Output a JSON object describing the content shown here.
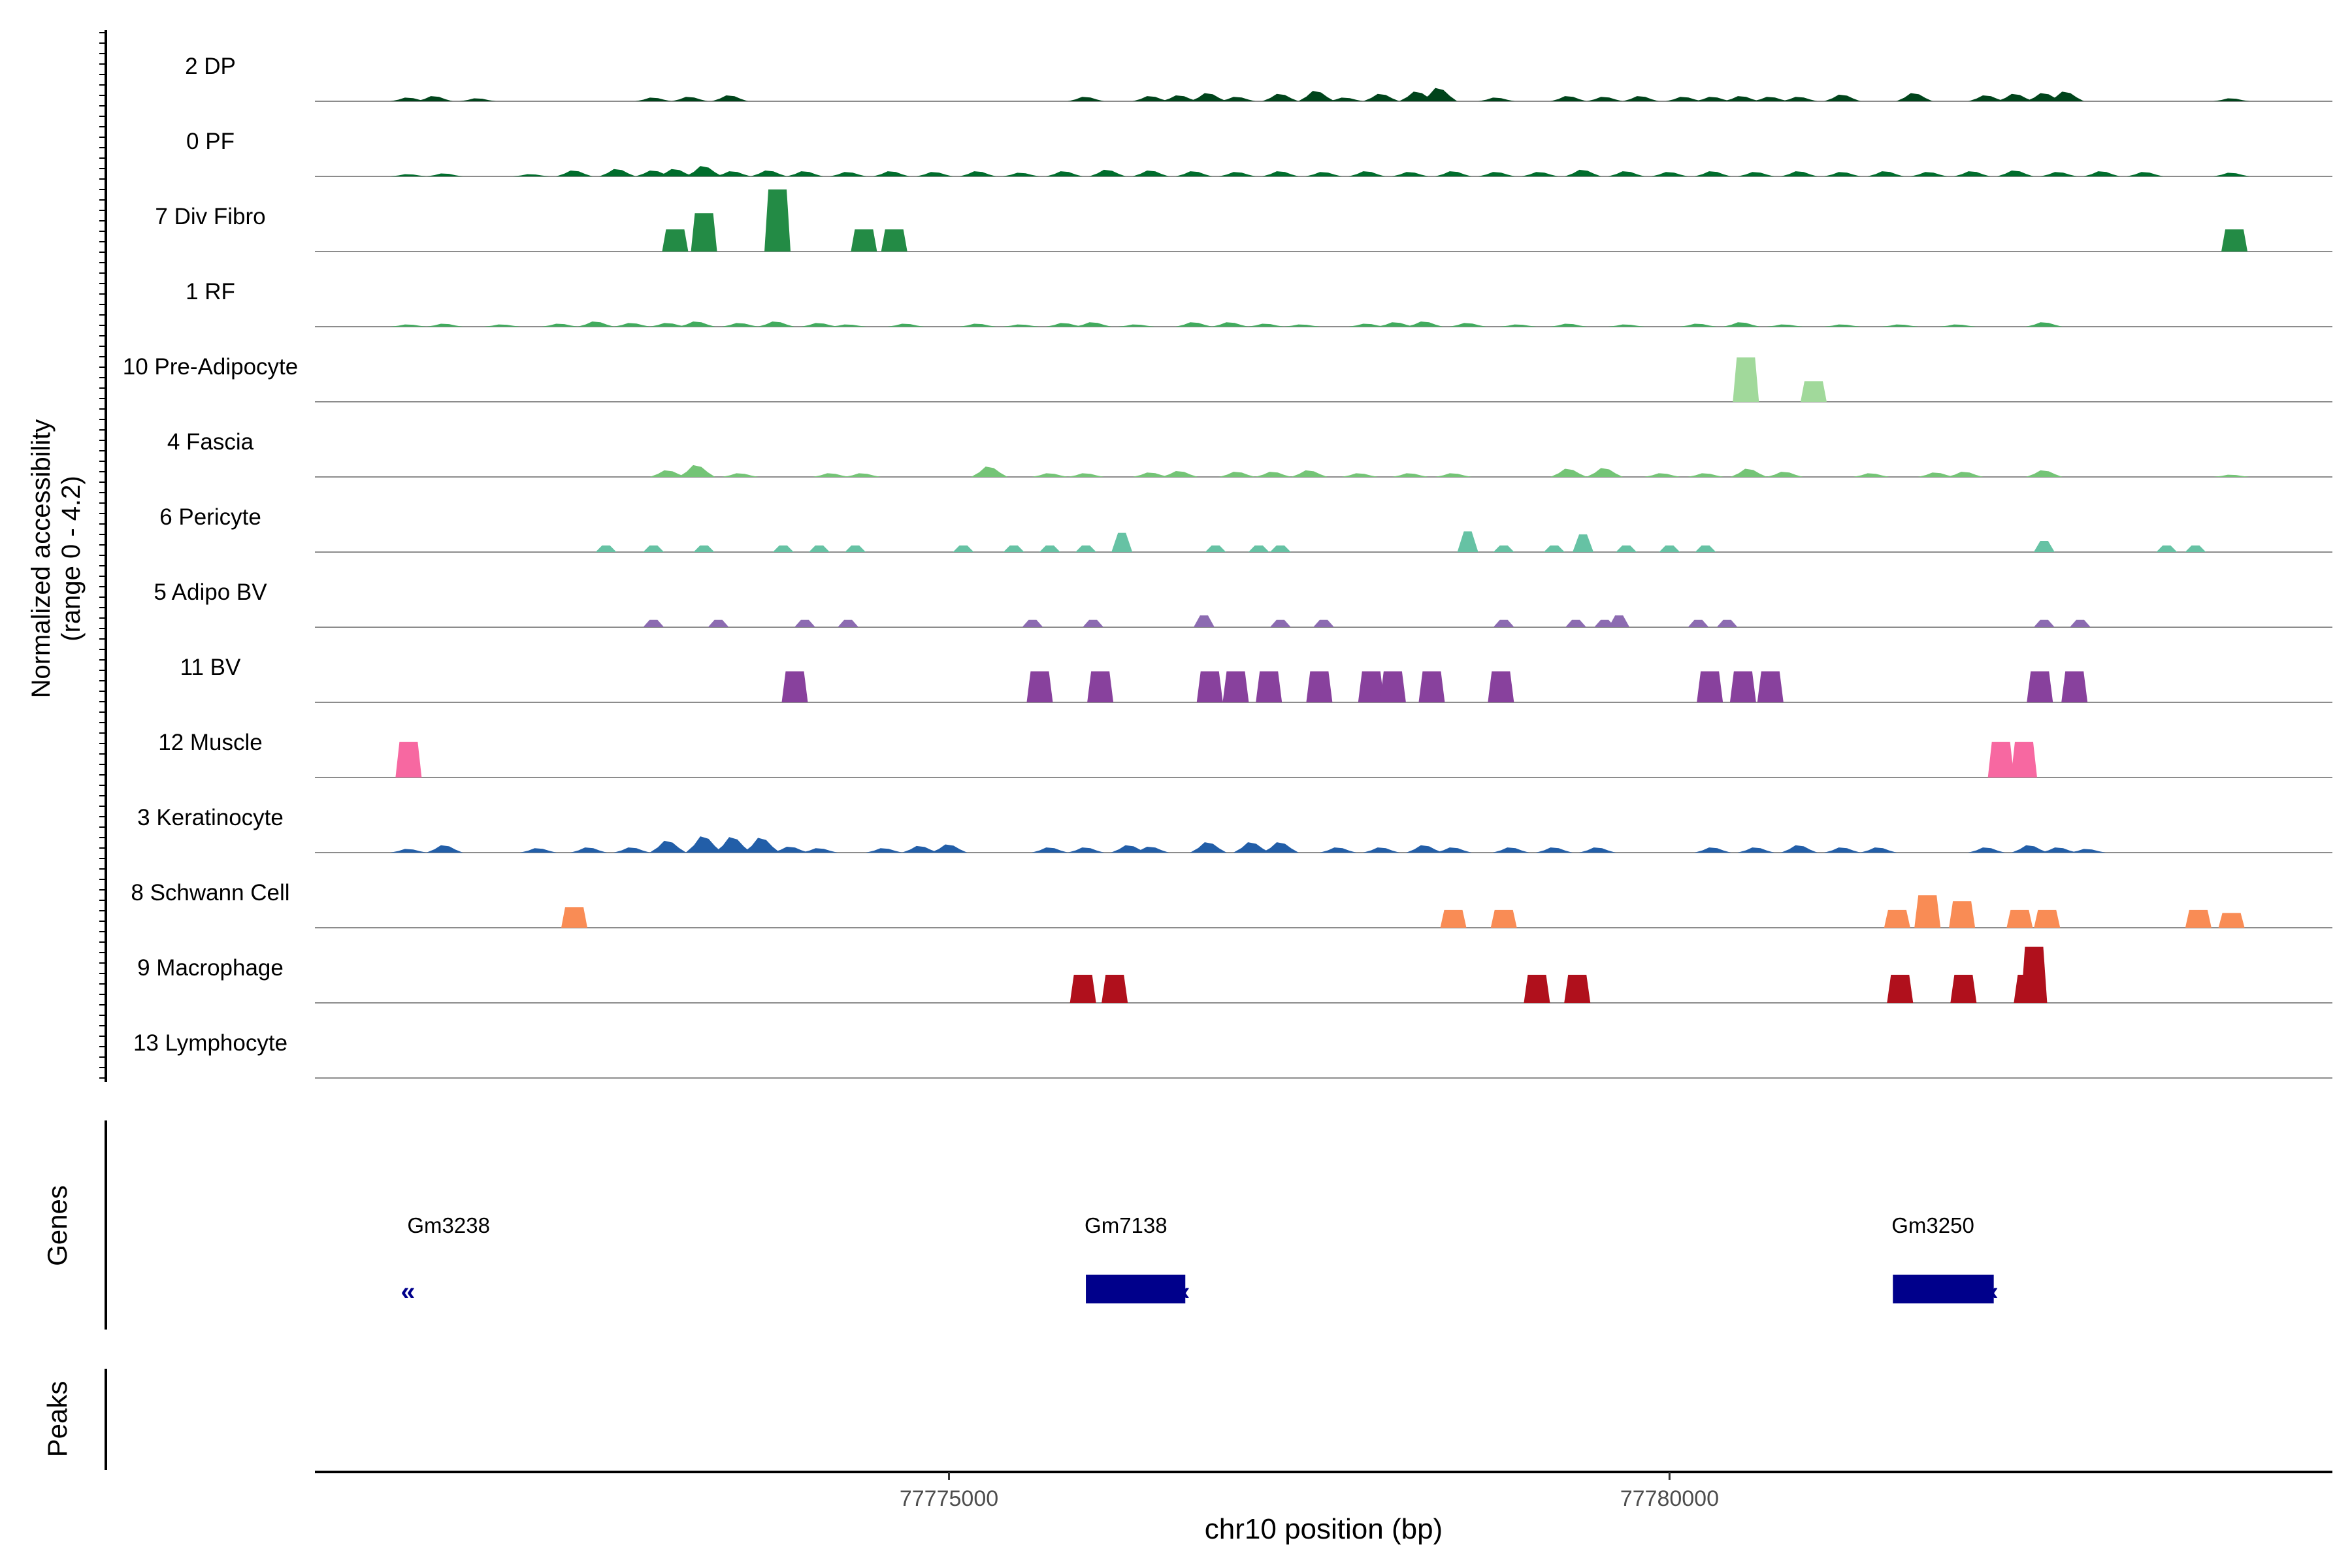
{
  "chart_data": {
    "type": "area",
    "title": "",
    "xlabel": "chr10 position (bp)",
    "ylabel_line1": "Normalized accessibility",
    "ylabel_line2": "(range 0 - 4.2)",
    "ylim": [
      0,
      4.2
    ],
    "xlim": [
      77770600,
      77784600
    ],
    "x_ticks": [
      77775000,
      77780000
    ],
    "x_tick_labels": [
      "77775000",
      "77780000"
    ],
    "gene_panel_label": "Genes",
    "peak_panel_label": "Peaks",
    "tracks": [
      {
        "name": "2 DP",
        "color": "#00441b",
        "style": "smooth",
        "peaks": [
          [
            77771250,
            0.25
          ],
          [
            77771430,
            0.35
          ],
          [
            77771730,
            0.2
          ],
          [
            77772950,
            0.25
          ],
          [
            77773200,
            0.3
          ],
          [
            77773480,
            0.4
          ],
          [
            77775950,
            0.3
          ],
          [
            77776400,
            0.35
          ],
          [
            77776600,
            0.4
          ],
          [
            77776800,
            0.55
          ],
          [
            77777000,
            0.3
          ],
          [
            77777300,
            0.5
          ],
          [
            77777550,
            0.7
          ],
          [
            77777750,
            0.25
          ],
          [
            77778000,
            0.5
          ],
          [
            77778250,
            0.65
          ],
          [
            77778400,
            0.9
          ],
          [
            77778800,
            0.25
          ],
          [
            77779300,
            0.35
          ],
          [
            77779550,
            0.3
          ],
          [
            77779800,
            0.35
          ],
          [
            77780100,
            0.3
          ],
          [
            77780300,
            0.3
          ],
          [
            77780500,
            0.35
          ],
          [
            77780700,
            0.3
          ],
          [
            77780900,
            0.3
          ],
          [
            77781200,
            0.45
          ],
          [
            77781700,
            0.55
          ],
          [
            77782200,
            0.4
          ],
          [
            77782400,
            0.5
          ],
          [
            77782600,
            0.55
          ],
          [
            77782750,
            0.65
          ],
          [
            77783900,
            0.2
          ]
        ]
      },
      {
        "name": "0 PF",
        "color": "#006d2c",
        "style": "smooth",
        "peaks": [
          [
            77771250,
            0.15
          ],
          [
            77771500,
            0.2
          ],
          [
            77772100,
            0.15
          ],
          [
            77772400,
            0.4
          ],
          [
            77772700,
            0.5
          ],
          [
            77772950,
            0.4
          ],
          [
            77773100,
            0.5
          ],
          [
            77773300,
            0.7
          ],
          [
            77773500,
            0.35
          ],
          [
            77773750,
            0.4
          ],
          [
            77774000,
            0.35
          ],
          [
            77774300,
            0.3
          ],
          [
            77774600,
            0.35
          ],
          [
            77774900,
            0.3
          ],
          [
            77775200,
            0.35
          ],
          [
            77775500,
            0.25
          ],
          [
            77775800,
            0.35
          ],
          [
            77776100,
            0.45
          ],
          [
            77776400,
            0.4
          ],
          [
            77776700,
            0.35
          ],
          [
            77777000,
            0.3
          ],
          [
            77777300,
            0.35
          ],
          [
            77777600,
            0.3
          ],
          [
            77777900,
            0.35
          ],
          [
            77778200,
            0.3
          ],
          [
            77778500,
            0.35
          ],
          [
            77778800,
            0.3
          ],
          [
            77779100,
            0.3
          ],
          [
            77779400,
            0.45
          ],
          [
            77779700,
            0.35
          ],
          [
            77780000,
            0.3
          ],
          [
            77780300,
            0.35
          ],
          [
            77780600,
            0.3
          ],
          [
            77780900,
            0.35
          ],
          [
            77781200,
            0.3
          ],
          [
            77781500,
            0.35
          ],
          [
            77781800,
            0.3
          ],
          [
            77782100,
            0.35
          ],
          [
            77782400,
            0.4
          ],
          [
            77782700,
            0.3
          ],
          [
            77783000,
            0.35
          ],
          [
            77783300,
            0.3
          ],
          [
            77783900,
            0.25
          ]
        ]
      },
      {
        "name": "7 Div Fibro",
        "color": "#238b45",
        "style": "blocky",
        "peaks": [
          [
            77773100,
            1.5
          ],
          [
            77773300,
            2.6
          ],
          [
            77773810,
            4.2
          ],
          [
            77774410,
            1.5
          ],
          [
            77774620,
            1.5
          ],
          [
            77783920,
            1.5
          ]
        ]
      },
      {
        "name": "1 RF",
        "color": "#41ab5d",
        "style": "smooth",
        "peaks": [
          [
            77771250,
            0.15
          ],
          [
            77771500,
            0.2
          ],
          [
            77771900,
            0.15
          ],
          [
            77772300,
            0.2
          ],
          [
            77772550,
            0.35
          ],
          [
            77772800,
            0.25
          ],
          [
            77773050,
            0.25
          ],
          [
            77773250,
            0.35
          ],
          [
            77773550,
            0.25
          ],
          [
            77773800,
            0.35
          ],
          [
            77774100,
            0.25
          ],
          [
            77774300,
            0.15
          ],
          [
            77774700,
            0.2
          ],
          [
            77775200,
            0.2
          ],
          [
            77775500,
            0.15
          ],
          [
            77775800,
            0.25
          ],
          [
            77776000,
            0.3
          ],
          [
            77776300,
            0.15
          ],
          [
            77776700,
            0.3
          ],
          [
            77776950,
            0.3
          ],
          [
            77777200,
            0.2
          ],
          [
            77777450,
            0.15
          ],
          [
            77777900,
            0.2
          ],
          [
            77778100,
            0.3
          ],
          [
            77778300,
            0.35
          ],
          [
            77778600,
            0.25
          ],
          [
            77778950,
            0.15
          ],
          [
            77779300,
            0.2
          ],
          [
            77779700,
            0.15
          ],
          [
            77780200,
            0.2
          ],
          [
            77780500,
            0.3
          ],
          [
            77780800,
            0.15
          ],
          [
            77781200,
            0.15
          ],
          [
            77781600,
            0.15
          ],
          [
            77782000,
            0.15
          ],
          [
            77782600,
            0.3
          ]
        ]
      },
      {
        "name": "10 Pre-Adipocyte",
        "color": "#a1d99b",
        "style": "blocky",
        "peaks": [
          [
            77780530,
            3.0
          ],
          [
            77781000,
            1.4
          ]
        ]
      },
      {
        "name": "4 Fascia",
        "color": "#74c476",
        "style": "smooth",
        "peaks": [
          [
            77773050,
            0.45
          ],
          [
            77773250,
            0.8
          ],
          [
            77773550,
            0.25
          ],
          [
            77774180,
            0.25
          ],
          [
            77774400,
            0.25
          ],
          [
            77775280,
            0.7
          ],
          [
            77775700,
            0.25
          ],
          [
            77775950,
            0.25
          ],
          [
            77776400,
            0.3
          ],
          [
            77776600,
            0.4
          ],
          [
            77777000,
            0.35
          ],
          [
            77777250,
            0.35
          ],
          [
            77777500,
            0.45
          ],
          [
            77777850,
            0.25
          ],
          [
            77778200,
            0.25
          ],
          [
            77778500,
            0.25
          ],
          [
            77779300,
            0.55
          ],
          [
            77779550,
            0.6
          ],
          [
            77779950,
            0.25
          ],
          [
            77780250,
            0.25
          ],
          [
            77780550,
            0.55
          ],
          [
            77780800,
            0.35
          ],
          [
            77781400,
            0.25
          ],
          [
            77781850,
            0.3
          ],
          [
            77782050,
            0.35
          ],
          [
            77782600,
            0.45
          ],
          [
            77783900,
            0.15
          ]
        ]
      },
      {
        "name": "6 Pericyte",
        "color": "#66c2a4",
        "style": "pointed",
        "peaks": [
          [
            77772620,
            0.45
          ],
          [
            77772950,
            0.45
          ],
          [
            77773300,
            0.45
          ],
          [
            77773850,
            0.45
          ],
          [
            77774100,
            0.45
          ],
          [
            77774350,
            0.45
          ],
          [
            77775100,
            0.45
          ],
          [
            77775450,
            0.45
          ],
          [
            77775700,
            0.45
          ],
          [
            77775950,
            0.45
          ],
          [
            77776200,
            1.3
          ],
          [
            77776850,
            0.45
          ],
          [
            77777150,
            0.45
          ],
          [
            77777300,
            0.45
          ],
          [
            77778600,
            1.4
          ],
          [
            77778850,
            0.45
          ],
          [
            77779200,
            0.45
          ],
          [
            77779400,
            1.2
          ],
          [
            77779700,
            0.45
          ],
          [
            77780000,
            0.45
          ],
          [
            77780250,
            0.45
          ],
          [
            77782600,
            0.75
          ],
          [
            77783450,
            0.45
          ],
          [
            77783650,
            0.45
          ]
        ]
      },
      {
        "name": "5 Adipo BV",
        "color": "#8c6bb1",
        "style": "pointed",
        "peaks": [
          [
            77772950,
            0.5
          ],
          [
            77773400,
            0.5
          ],
          [
            77774000,
            0.5
          ],
          [
            77774300,
            0.5
          ],
          [
            77775580,
            0.5
          ],
          [
            77776000,
            0.5
          ],
          [
            77776770,
            0.8
          ],
          [
            77777300,
            0.5
          ],
          [
            77777600,
            0.5
          ],
          [
            77778850,
            0.5
          ],
          [
            77779350,
            0.5
          ],
          [
            77779550,
            0.5
          ],
          [
            77779650,
            0.8
          ],
          [
            77780200,
            0.5
          ],
          [
            77780400,
            0.5
          ],
          [
            77782600,
            0.5
          ],
          [
            77782850,
            0.5
          ]
        ]
      },
      {
        "name": "11 BV",
        "color": "#88419d",
        "style": "blocky",
        "peaks": [
          [
            77773930,
            2.1
          ],
          [
            77775630,
            2.1
          ],
          [
            77776050,
            2.1
          ],
          [
            77776810,
            2.1
          ],
          [
            77776990,
            2.1
          ],
          [
            77777220,
            2.1
          ],
          [
            77777570,
            2.1
          ],
          [
            77777930,
            2.1
          ],
          [
            77778080,
            2.1
          ],
          [
            77778350,
            2.1
          ],
          [
            77778830,
            2.1
          ],
          [
            77780280,
            2.1
          ],
          [
            77780510,
            2.1
          ],
          [
            77780700,
            2.1
          ],
          [
            77782570,
            2.1
          ],
          [
            77782810,
            2.1
          ]
        ]
      },
      {
        "name": "12 Muscle",
        "color": "#f768a1",
        "style": "blocky",
        "peaks": [
          [
            77771250,
            2.4
          ],
          [
            77782300,
            2.4
          ],
          [
            77782460,
            2.4
          ]
        ]
      },
      {
        "name": "3 Keratinocyte",
        "color": "#225ea8",
        "style": "smooth",
        "peaks": [
          [
            77771250,
            0.25
          ],
          [
            77771500,
            0.5
          ],
          [
            77772150,
            0.3
          ],
          [
            77772500,
            0.35
          ],
          [
            77772800,
            0.35
          ],
          [
            77773050,
            0.8
          ],
          [
            77773300,
            1.1
          ],
          [
            77773500,
            1.05
          ],
          [
            77773700,
            1.0
          ],
          [
            77773900,
            0.4
          ],
          [
            77774100,
            0.3
          ],
          [
            77774550,
            0.3
          ],
          [
            77774800,
            0.45
          ],
          [
            77775000,
            0.55
          ],
          [
            77775700,
            0.35
          ],
          [
            77775950,
            0.35
          ],
          [
            77776250,
            0.5
          ],
          [
            77776400,
            0.4
          ],
          [
            77776800,
            0.7
          ],
          [
            77777100,
            0.7
          ],
          [
            77777300,
            0.7
          ],
          [
            77777700,
            0.35
          ],
          [
            77778000,
            0.35
          ],
          [
            77778300,
            0.5
          ],
          [
            77778500,
            0.35
          ],
          [
            77778900,
            0.35
          ],
          [
            77779200,
            0.35
          ],
          [
            77779500,
            0.35
          ],
          [
            77780300,
            0.35
          ],
          [
            77780600,
            0.35
          ],
          [
            77780900,
            0.5
          ],
          [
            77781200,
            0.35
          ],
          [
            77781450,
            0.35
          ],
          [
            77782200,
            0.35
          ],
          [
            77782500,
            0.5
          ],
          [
            77782700,
            0.35
          ],
          [
            77782900,
            0.25
          ]
        ]
      },
      {
        "name": "8 Schwann Cell",
        "color": "#f98c55",
        "style": "blocky",
        "peaks": [
          [
            77772400,
            1.4
          ],
          [
            77778500,
            1.2
          ],
          [
            77778850,
            1.2
          ],
          [
            77781580,
            1.2
          ],
          [
            77781790,
            2.2
          ],
          [
            77782030,
            1.8
          ],
          [
            77782430,
            1.2
          ],
          [
            77782620,
            1.2
          ],
          [
            77783670,
            1.2
          ],
          [
            77783900,
            1.0
          ]
        ]
      },
      {
        "name": "9 Macrophage",
        "color": "#b0101c",
        "style": "blocky",
        "peaks": [
          [
            77775930,
            1.9
          ],
          [
            77776150,
            1.9
          ],
          [
            77779080,
            1.9
          ],
          [
            77779360,
            1.9
          ],
          [
            77781600,
            1.9
          ],
          [
            77782040,
            1.9
          ],
          [
            77782480,
            1.9
          ],
          [
            77782530,
            3.8
          ]
        ]
      },
      {
        "name": "13 Lymphocyte",
        "color": "#2c2c2c",
        "style": "smooth",
        "peaks": []
      }
    ],
    "genes": [
      {
        "name": "Gm3238",
        "start": 77771250,
        "end": 77771350,
        "strand": "-",
        "arrows": "«",
        "color": "#00008b"
      },
      {
        "name": "Gm7138",
        "start": 77775950,
        "end": 77776640,
        "strand": "-",
        "arrows": "‹",
        "color": "#00008b"
      },
      {
        "name": "Gm3250",
        "start": 77781550,
        "end": 77782250,
        "strand": "-",
        "arrows": "‹",
        "color": "#00008b"
      }
    ]
  }
}
